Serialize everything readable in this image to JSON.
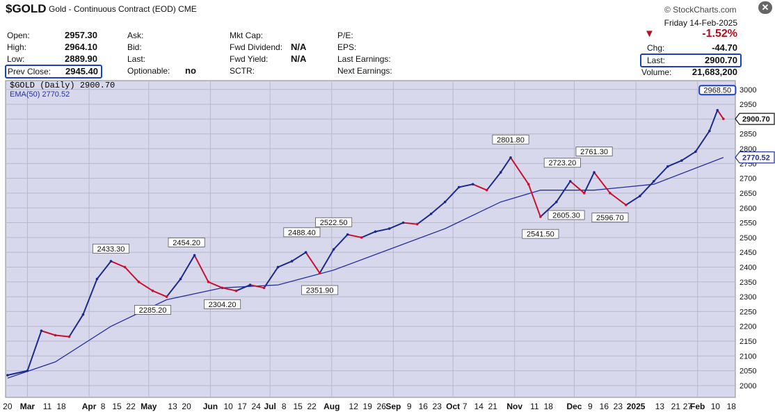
{
  "header": {
    "symbol": "$GOLD",
    "description": "Gold - Continuous Contract (EOD)",
    "exchange": "CME",
    "brand": "© StockCharts.com"
  },
  "quote": {
    "date": "Friday  14-Feb-2025",
    "open_label": "Open:",
    "open": "2957.30",
    "high_label": "High:",
    "high": "2964.10",
    "low_label": "Low:",
    "low": "2889.90",
    "prev_close_label": "Prev Close:",
    "prev_close": "2945.40",
    "ask_label": "Ask:",
    "bid_label": "Bid:",
    "last_label_mid": "Last:",
    "optionable_label": "Optionable:",
    "optionable": "no",
    "mktcap_label": "Mkt Cap:",
    "fwd_div_label": "Fwd Dividend:",
    "fwd_div": "N/A",
    "fwd_yield_label": "Fwd Yield:",
    "fwd_yield": "N/A",
    "sctr_label": "SCTR:",
    "pe_label": "P/E:",
    "eps_label": "EPS:",
    "last_earnings_label": "Last Earnings:",
    "next_earnings_label": "Next Earnings:",
    "pct_change": "-1.52%",
    "chg_label": "Chg:",
    "chg": "-44.70",
    "last_label": "Last:",
    "last": "2900.70",
    "volume_label": "Volume:",
    "volume": "21,683,200",
    "down_color": "#b01020"
  },
  "chart_data": {
    "type": "line",
    "legend": [
      {
        "text": "$GOLD (Daily) 2900.70",
        "color": "#111111"
      },
      {
        "text": "EMA(50) 2770.52",
        "color": "#2030a0"
      }
    ],
    "ylim": [
      1960,
      3030
    ],
    "yticks": [
      2000,
      2050,
      2100,
      2150,
      2200,
      2250,
      2300,
      2350,
      2400,
      2450,
      2500,
      2550,
      2600,
      2650,
      2700,
      2750,
      2800,
      2850,
      2900,
      2950,
      3000
    ],
    "ytick_labels": [
      "2000",
      "2050",
      "2100",
      "2150",
      "2200",
      "2250",
      "2300",
      "2350",
      "2400",
      "2450",
      "2500",
      "2550",
      "2600",
      "2650",
      "2700",
      "2750",
      "2800",
      "2850",
      "2900",
      "2950",
      "3000"
    ],
    "last_price_label": "2900.70",
    "last_price": 2900.7,
    "ema_last_label": "2770.52",
    "ema_last": 2770.52,
    "price_series": {
      "name": "$GOLD (Daily)",
      "x": [
        "2024-02-20",
        "2024-03-01",
        "2024-03-08",
        "2024-03-15",
        "2024-03-22",
        "2024-03-29",
        "2024-04-05",
        "2024-04-12",
        "2024-04-19",
        "2024-04-26",
        "2024-05-03",
        "2024-05-10",
        "2024-05-17",
        "2024-05-24",
        "2024-05-31",
        "2024-06-07",
        "2024-06-14",
        "2024-06-21",
        "2024-06-28",
        "2024-07-05",
        "2024-07-12",
        "2024-07-19",
        "2024-07-26",
        "2024-08-02",
        "2024-08-09",
        "2024-08-16",
        "2024-08-23",
        "2024-08-30",
        "2024-09-06",
        "2024-09-13",
        "2024-09-20",
        "2024-09-27",
        "2024-10-04",
        "2024-10-11",
        "2024-10-18",
        "2024-10-25",
        "2024-10-30",
        "2024-11-08",
        "2024-11-14",
        "2024-11-22",
        "2024-11-29",
        "2024-12-06",
        "2024-12-11",
        "2024-12-19",
        "2024-12-27",
        "2025-01-03",
        "2025-01-10",
        "2025-01-17",
        "2025-01-24",
        "2025-01-31",
        "2025-02-07",
        "2025-02-11",
        "2025-02-14"
      ],
      "y": [
        2035,
        2050,
        2185,
        2170,
        2165,
        2240,
        2360,
        2420,
        2400,
        2350,
        2320,
        2300,
        2360,
        2440,
        2350,
        2330,
        2320,
        2340,
        2330,
        2400,
        2420,
        2450,
        2380,
        2460,
        2510,
        2500,
        2520,
        2530,
        2550,
        2545,
        2580,
        2620,
        2670,
        2680,
        2660,
        2720,
        2770,
        2680,
        2570,
        2620,
        2690,
        2650,
        2720,
        2650,
        2610,
        2640,
        2690,
        2740,
        2760,
        2790,
        2860,
        2930,
        2900.7
      ]
    },
    "ema_series": {
      "name": "EMA(50)",
      "x": [
        "2024-02-20",
        "2024-03-15",
        "2024-04-12",
        "2024-05-10",
        "2024-06-07",
        "2024-07-05",
        "2024-08-02",
        "2024-08-30",
        "2024-09-27",
        "2024-10-25",
        "2024-11-14",
        "2024-12-11",
        "2025-01-10",
        "2025-02-14"
      ],
      "y": [
        2025,
        2080,
        2200,
        2290,
        2330,
        2340,
        2390,
        2460,
        2530,
        2620,
        2660,
        2660,
        2680,
        2770.52
      ]
    },
    "annotations": [
      {
        "label": "2433.30",
        "x": "2024-04-12",
        "y": 2433.3,
        "pos": "above"
      },
      {
        "label": "2285.20",
        "x": "2024-05-03",
        "y": 2285.2,
        "pos": "below"
      },
      {
        "label": "2454.20",
        "x": "2024-05-20",
        "y": 2454.2,
        "pos": "above"
      },
      {
        "label": "2304.20",
        "x": "2024-06-07",
        "y": 2304.2,
        "pos": "below"
      },
      {
        "label": "2488.40",
        "x": "2024-07-17",
        "y": 2488.4,
        "pos": "above"
      },
      {
        "label": "2351.90",
        "x": "2024-07-26",
        "y": 2351.9,
        "pos": "below"
      },
      {
        "label": "2522.50",
        "x": "2024-08-02",
        "y": 2522.5,
        "pos": "above"
      },
      {
        "label": "2801.80",
        "x": "2024-10-30",
        "y": 2801.8,
        "pos": "above"
      },
      {
        "label": "2541.50",
        "x": "2024-11-14",
        "y": 2541.5,
        "pos": "below"
      },
      {
        "label": "2723.20",
        "x": "2024-11-25",
        "y": 2723.2,
        "pos": "above"
      },
      {
        "label": "2605.30",
        "x": "2024-11-27",
        "y": 2605.3,
        "pos": "below"
      },
      {
        "label": "2761.30",
        "x": "2024-12-11",
        "y": 2761.3,
        "pos": "above"
      },
      {
        "label": "2596.70",
        "x": "2024-12-19",
        "y": 2596.7,
        "pos": "below"
      },
      {
        "label": "2968.50",
        "x": "2025-02-11",
        "y": 2968.5,
        "pos": "above",
        "boxed": true
      }
    ],
    "xticks": [
      {
        "label": "20",
        "x": "2024-02-20",
        "bold": false
      },
      {
        "label": "Mar",
        "x": "2024-03-01",
        "bold": true
      },
      {
        "label": "11",
        "x": "2024-03-11",
        "bold": false
      },
      {
        "label": "18",
        "x": "2024-03-18",
        "bold": false
      },
      {
        "label": "Apr",
        "x": "2024-04-01",
        "bold": true
      },
      {
        "label": "8",
        "x": "2024-04-08",
        "bold": false
      },
      {
        "label": "15",
        "x": "2024-04-15",
        "bold": false
      },
      {
        "label": "22",
        "x": "2024-04-22",
        "bold": false
      },
      {
        "label": "May",
        "x": "2024-05-01",
        "bold": true
      },
      {
        "label": "13",
        "x": "2024-05-13",
        "bold": false
      },
      {
        "label": "20",
        "x": "2024-05-20",
        "bold": false
      },
      {
        "label": "Jun",
        "x": "2024-06-01",
        "bold": true
      },
      {
        "label": "10",
        "x": "2024-06-10",
        "bold": false
      },
      {
        "label": "17",
        "x": "2024-06-17",
        "bold": false
      },
      {
        "label": "24",
        "x": "2024-06-24",
        "bold": false
      },
      {
        "label": "Jul",
        "x": "2024-07-01",
        "bold": true
      },
      {
        "label": "8",
        "x": "2024-07-08",
        "bold": false
      },
      {
        "label": "15",
        "x": "2024-07-15",
        "bold": false
      },
      {
        "label": "22",
        "x": "2024-07-22",
        "bold": false
      },
      {
        "label": "Aug",
        "x": "2024-08-01",
        "bold": true
      },
      {
        "label": "12",
        "x": "2024-08-12",
        "bold": false
      },
      {
        "label": "19",
        "x": "2024-08-19",
        "bold": false
      },
      {
        "label": "26",
        "x": "2024-08-26",
        "bold": false
      },
      {
        "label": "Sep",
        "x": "2024-09-01",
        "bold": true
      },
      {
        "label": "9",
        "x": "2024-09-09",
        "bold": false
      },
      {
        "label": "16",
        "x": "2024-09-16",
        "bold": false
      },
      {
        "label": "23",
        "x": "2024-09-23",
        "bold": false
      },
      {
        "label": "Oct",
        "x": "2024-10-01",
        "bold": true
      },
      {
        "label": "7",
        "x": "2024-10-07",
        "bold": false
      },
      {
        "label": "14",
        "x": "2024-10-14",
        "bold": false
      },
      {
        "label": "21",
        "x": "2024-10-21",
        "bold": false
      },
      {
        "label": "Nov",
        "x": "2024-11-01",
        "bold": true
      },
      {
        "label": "11",
        "x": "2024-11-11",
        "bold": false
      },
      {
        "label": "18",
        "x": "2024-11-18",
        "bold": false
      },
      {
        "label": "Dec",
        "x": "2024-12-01",
        "bold": true
      },
      {
        "label": "9",
        "x": "2024-12-09",
        "bold": false
      },
      {
        "label": "16",
        "x": "2024-12-16",
        "bold": false
      },
      {
        "label": "23",
        "x": "2024-12-23",
        "bold": false
      },
      {
        "label": "2025",
        "x": "2025-01-01",
        "bold": true
      },
      {
        "label": "13",
        "x": "2025-01-13",
        "bold": false
      },
      {
        "label": "21",
        "x": "2025-01-21",
        "bold": false
      },
      {
        "label": "27",
        "x": "2025-01-27",
        "bold": false
      },
      {
        "label": "Feb",
        "x": "2025-02-01",
        "bold": true
      },
      {
        "label": "10",
        "x": "2025-02-10",
        "bold": false
      },
      {
        "label": "18",
        "x": "2025-02-18",
        "bold": false
      }
    ],
    "xrange": [
      "2024-02-19",
      "2025-02-20"
    ],
    "grid": true,
    "colors": {
      "plot_bg": "#d8d8ec",
      "grid": "#b8b8cc",
      "up": "#1a2a8a",
      "down": "#c8102e",
      "ema": "#2030a0"
    }
  }
}
